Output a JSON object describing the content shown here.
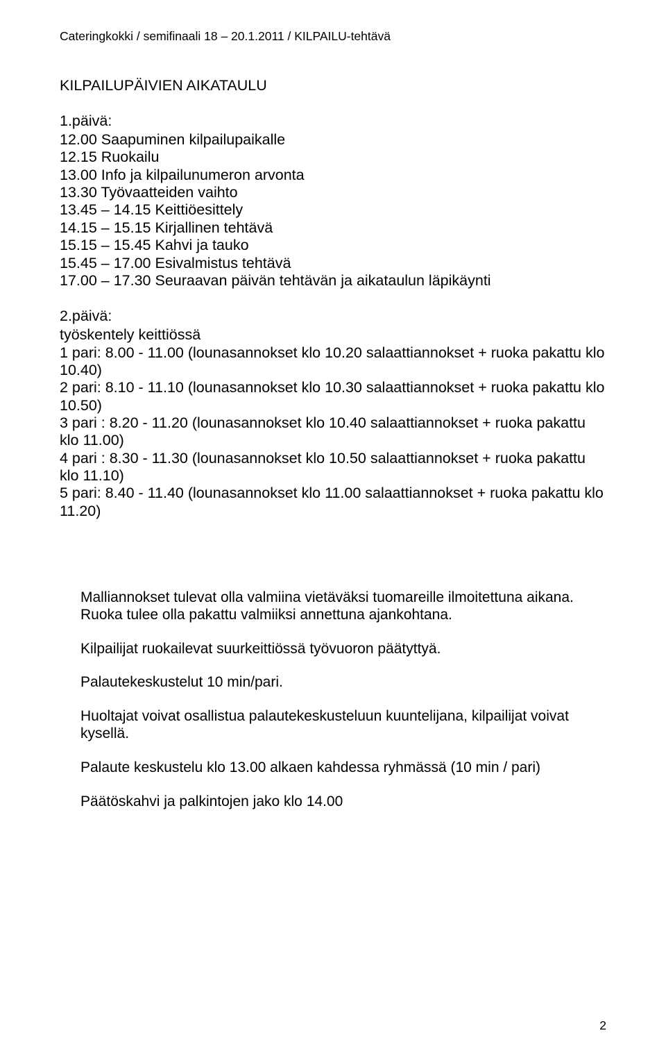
{
  "header": "Cateringkokki / semifinaali 18 – 20.1.2011 / KILPAILU-tehtävä",
  "title": "KILPAILUPÄIVIEN AIKATAULU",
  "day1": {
    "label": "1.päivä:",
    "lines": [
      "12.00 Saapuminen kilpailupaikalle",
      "12.15 Ruokailu",
      "13.00 Info ja kilpailunumeron arvonta",
      "13.30 Työvaatteiden vaihto",
      "13.45 – 14.15 Keittiöesittely",
      "14.15 – 15.15 Kirjallinen tehtävä",
      "15.15 – 15.45 Kahvi ja tauko",
      "15.45 – 17.00 Esivalmistus tehtävä",
      "17.00 – 17.30 Seuraavan päivän tehtävän ja aikataulun läpikäynti"
    ]
  },
  "day2": {
    "label": "2.päivä:",
    "sublabel": "työskentely keittiössä",
    "lines": [
      "1 pari:  8.00 - 11.00 (lounasannokset klo 10.20 salaattiannokset + ruoka pakattu klo 10.40)",
      "2 pari:  8.10 - 11.10 (lounasannokset klo 10.30 salaattiannokset + ruoka pakattu klo 10.50)",
      "3 pari : 8.20 - 11.20 (lounasannokset klo 10.40 salaattiannokset + ruoka pakattu klo 11.00)",
      "4 pari : 8.30 - 11.30 (lounasannokset klo 10.50 salaattiannokset + ruoka pakattu klo 11.10)",
      "5 pari:  8.40 - 11.40 (lounasannokset klo 11.00 salaattiannokset + ruoka pakattu klo 11.20)"
    ]
  },
  "paras": [
    "Malliannokset tulevat olla valmiina vietäväksi tuomareille ilmoitettuna aikana.",
    "Ruoka tulee olla pakattu valmiiksi annettuna ajankohtana.",
    "Kilpailijat ruokailevat suurkeittiössä työvuoron päätyttyä.",
    "Palautekeskustelut 10 min/pari.",
    "Huoltajat voivat osallistua palautekeskusteluun kuuntelijana, kilpailijat voivat kysellä.",
    "Palaute keskustelu klo 13.00 alkaen kahdessa ryhmässä (10 min / pari)",
    "Päätöskahvi ja palkintojen jako klo 14.00"
  ],
  "pageNumber": "2"
}
